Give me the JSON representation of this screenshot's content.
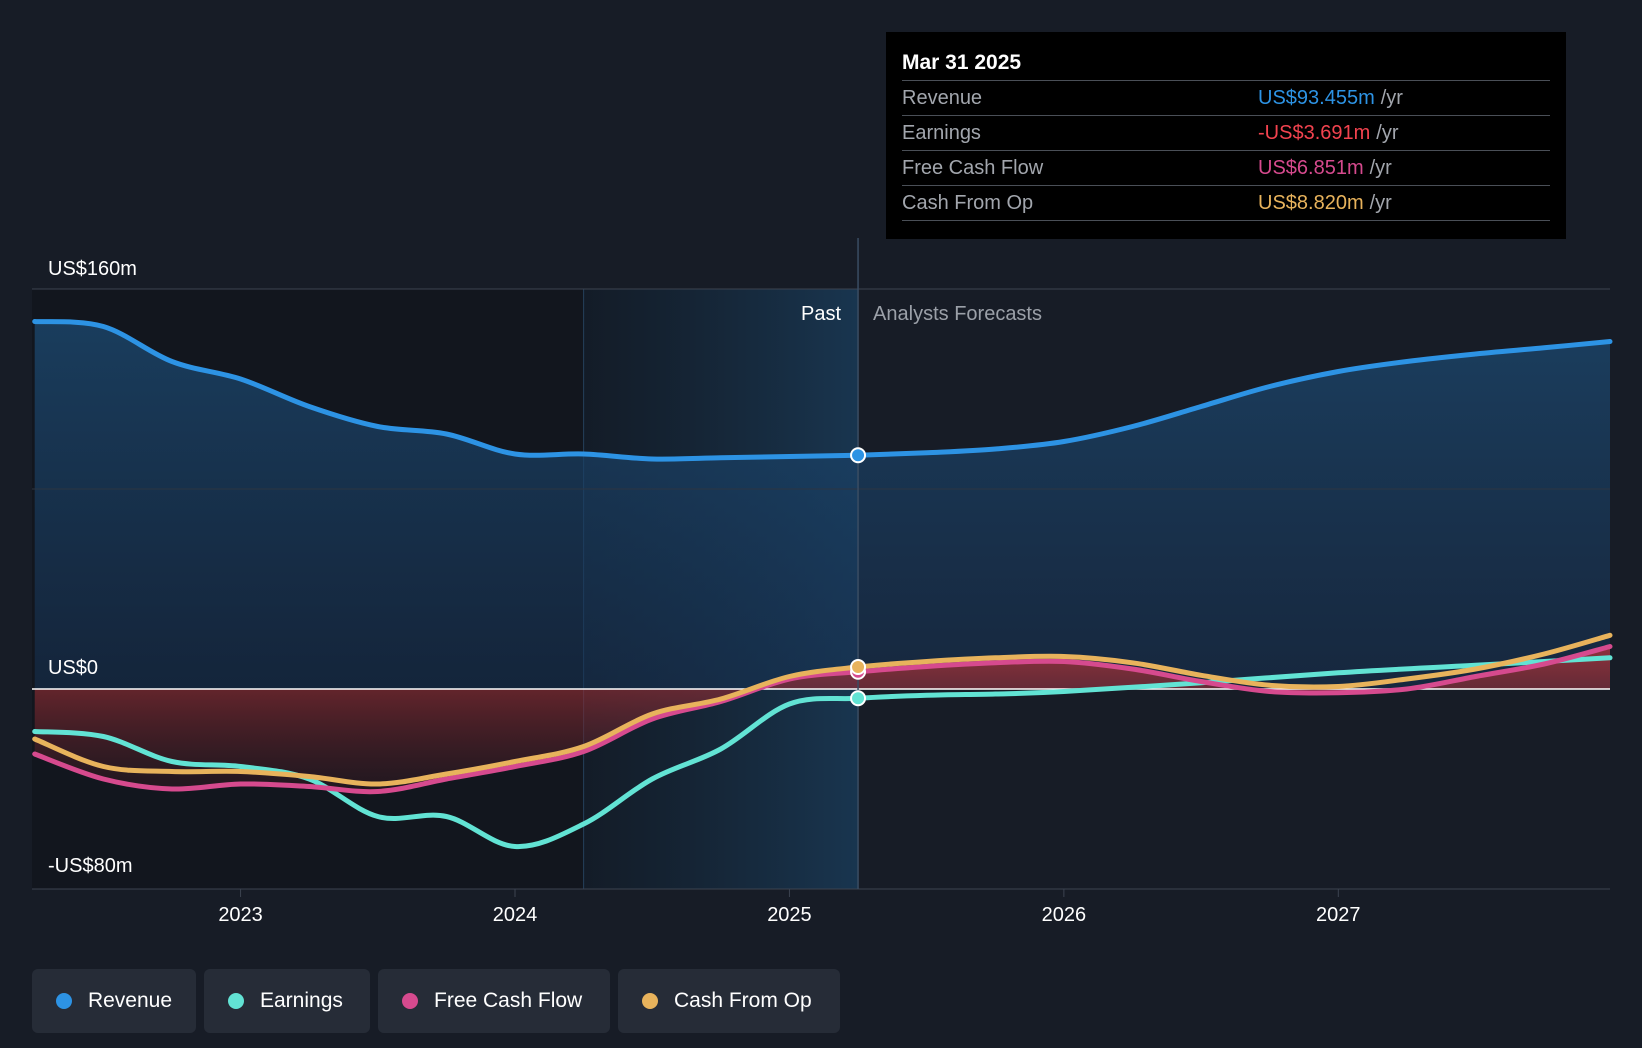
{
  "colors": {
    "revenue": "#2d93e4",
    "earnings": "#62e3d4",
    "fcf": "#d64a8e",
    "cfo": "#e8b35c",
    "revenue_value": "#2d93e4",
    "earnings_value": "#f2434f",
    "fcf_value": "#d64a8e",
    "cfo_value": "#e8b35c"
  },
  "tooltip": {
    "date": "Mar 31 2025",
    "rows": [
      {
        "name": "Revenue",
        "value": "US$93.455m",
        "unit": "/yr"
      },
      {
        "name": "Earnings",
        "value": "-US$3.691m",
        "unit": "/yr"
      },
      {
        "name": "Free Cash Flow",
        "value": "US$6.851m",
        "unit": "/yr"
      },
      {
        "name": "Cash From Op",
        "value": "US$8.820m",
        "unit": "/yr"
      }
    ]
  },
  "legend": {
    "items": [
      {
        "label": "Revenue",
        "icon": "revenue-dot-icon"
      },
      {
        "label": "Earnings",
        "icon": "earnings-dot-icon"
      },
      {
        "label": "Free Cash Flow",
        "icon": "fcf-dot-icon"
      },
      {
        "label": "Cash From Op",
        "icon": "cfo-dot-icon"
      }
    ]
  },
  "chart_data": {
    "type": "line",
    "title": "",
    "past_label": "Past",
    "forecast_label": "Analysts Forecasts",
    "y_labels": {
      "top": "US$160m",
      "zero": "US$0",
      "bottom": "-US$80m"
    },
    "ylim": [
      -80,
      160
    ],
    "xlim": [
      2022.24,
      2027.99
    ],
    "x_ticks": [
      2023,
      2024,
      2025,
      2026,
      2027
    ],
    "x_tick_labels": [
      "2023",
      "2024",
      "2025",
      "2026",
      "2027"
    ],
    "past_end": 2025.25,
    "highlight_start": 2024.25,
    "series": [
      {
        "name": "Revenue",
        "key": "revenue",
        "x": [
          2022.25,
          2022.5,
          2022.75,
          2023.0,
          2023.25,
          2023.5,
          2023.75,
          2024.0,
          2024.25,
          2024.5,
          2024.75,
          2025.0,
          2025.25,
          2025.5,
          2025.75,
          2026.0,
          2026.25,
          2026.5,
          2026.75,
          2027.0,
          2027.25,
          2027.5,
          2027.75,
          2027.99
        ],
        "values": [
          147,
          145,
          131,
          124,
          113,
          105,
          102,
          94,
          94,
          92,
          92.5,
          93,
          93.5,
          94.5,
          96,
          99,
          105,
          113,
          121,
          127,
          131,
          134,
          136.5,
          139
        ]
      },
      {
        "name": "Earnings",
        "key": "earnings",
        "x": [
          2022.25,
          2022.5,
          2022.75,
          2023.0,
          2023.25,
          2023.5,
          2023.75,
          2024.0,
          2024.25,
          2024.5,
          2024.75,
          2025.0,
          2025.25,
          2025.5,
          2025.75,
          2026.0,
          2026.5,
          2027.0,
          2027.5,
          2027.99
        ],
        "values": [
          -17,
          -19,
          -29,
          -31,
          -36,
          -51,
          -51,
          -63,
          -54,
          -36,
          -24,
          -6,
          -3.7,
          -2.5,
          -2,
          -1,
          2.5,
          6.5,
          9.5,
          12.5
        ]
      },
      {
        "name": "Free Cash Flow",
        "key": "fcf",
        "x": [
          2022.25,
          2022.5,
          2022.75,
          2023.0,
          2023.25,
          2023.5,
          2023.75,
          2024.0,
          2024.25,
          2024.5,
          2024.75,
          2025.0,
          2025.25,
          2025.5,
          2025.75,
          2026.0,
          2026.25,
          2026.5,
          2026.75,
          2027.0,
          2027.25,
          2027.5,
          2027.75,
          2027.99
        ],
        "values": [
          -26,
          -36,
          -40,
          -38,
          -39,
          -41,
          -36,
          -31,
          -25,
          -12,
          -5,
          4,
          6.9,
          9,
          10.5,
          11,
          8,
          3,
          -1,
          -1.5,
          0,
          5,
          10,
          17
        ]
      },
      {
        "name": "Cash From Op",
        "key": "cfo",
        "x": [
          2022.25,
          2022.5,
          2022.75,
          2023.0,
          2023.25,
          2023.5,
          2023.75,
          2024.0,
          2024.25,
          2024.5,
          2024.75,
          2025.0,
          2025.25,
          2025.5,
          2025.75,
          2026.0,
          2026.25,
          2026.5,
          2026.75,
          2027.0,
          2027.25,
          2027.5,
          2027.75,
          2027.99
        ],
        "values": [
          -20,
          -31,
          -33,
          -33,
          -35,
          -38,
          -34,
          -29,
          -23,
          -10,
          -4,
          5,
          8.8,
          11,
          12.5,
          13,
          10.5,
          5.5,
          1.5,
          1,
          4,
          8,
          14,
          21.5
        ]
      }
    ]
  }
}
